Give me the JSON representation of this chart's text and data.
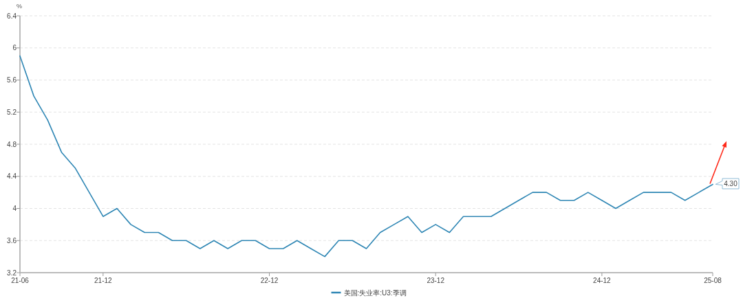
{
  "chart_data": {
    "type": "line",
    "ylabel": "%",
    "categories": [
      "21-06",
      null,
      null,
      null,
      null,
      null,
      "21-12",
      null,
      null,
      null,
      null,
      null,
      null,
      null,
      null,
      null,
      null,
      null,
      "22-12",
      null,
      null,
      null,
      null,
      null,
      null,
      null,
      null,
      null,
      null,
      null,
      "23-12",
      null,
      null,
      null,
      null,
      null,
      null,
      null,
      null,
      null,
      null,
      null,
      "24-12",
      null,
      null,
      null,
      null,
      null,
      null,
      null,
      "25-08"
    ],
    "series": [
      {
        "name": "美国:失业率:U3:季调",
        "color": "#2e86b4",
        "values": [
          5.9,
          5.4,
          5.1,
          4.7,
          4.5,
          4.2,
          3.9,
          4.0,
          3.8,
          3.7,
          3.7,
          3.6,
          3.6,
          3.5,
          3.6,
          3.5,
          3.6,
          3.6,
          3.5,
          3.5,
          3.6,
          3.5,
          3.4,
          3.6,
          3.6,
          3.5,
          3.7,
          3.8,
          3.9,
          3.7,
          3.8,
          3.7,
          3.9,
          3.9,
          3.9,
          4.0,
          4.1,
          4.2,
          4.2,
          4.1,
          4.1,
          4.2,
          4.1,
          4.0,
          4.1,
          4.2,
          4.2,
          4.2,
          4.1,
          4.2,
          4.3
        ]
      }
    ],
    "ylim": [
      3.2,
      6.4
    ],
    "yticks": [
      3.2,
      3.6,
      4,
      4.4,
      4.8,
      5.2,
      5.6,
      6,
      6.4
    ],
    "grid": "y",
    "legend": "bottom",
    "annotations": [
      {
        "text": "4.30",
        "x": "25-08",
        "y": 4.3
      }
    ]
  }
}
